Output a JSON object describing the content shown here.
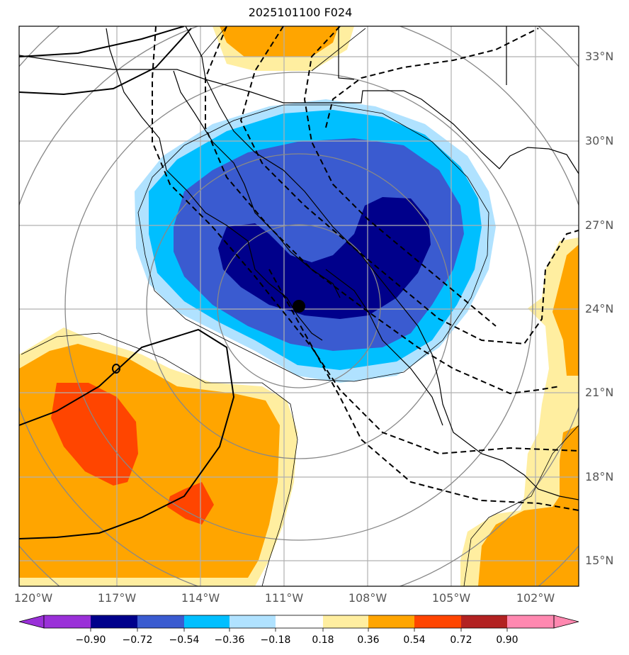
{
  "title": "2025101100 F024",
  "colors": {
    "bg": "#ffffff",
    "grid": "#b0b0b0",
    "ring": "#888888",
    "c_neg090": "#9a30d8",
    "c_neg072": "#00008b",
    "c_neg054": "#3a5bd0",
    "c_neg036": "#00bfff",
    "c_neg018": "#b0e2ff",
    "c_pos018": "#ffeea0",
    "c_pos036": "#ffa500",
    "c_pos054": "#ff4500",
    "c_pos072": "#b22222",
    "c_pos090": "#ff88b0"
  },
  "lat_labels": [
    "33°N",
    "30°N",
    "27°N",
    "24°N",
    "21°N",
    "18°N",
    "15°N"
  ],
  "lon_labels": [
    "120°W",
    "117°W",
    "114°W",
    "111°W",
    "108°W",
    "105°W",
    "102°W"
  ],
  "colorbar": {
    "ticks": [
      "−0.90",
      "−0.72",
      "−0.54",
      "−0.36",
      "−0.18",
      "0.18",
      "0.36",
      "0.54",
      "0.72",
      "0.90"
    ],
    "swatches": [
      "#9a30d8",
      "#00008b",
      "#3a5bd0",
      "#00bfff",
      "#b0e2ff",
      "#ffffff",
      "#ffeea0",
      "#ffa500",
      "#ff4500",
      "#b22222",
      "#ff88b0"
    ]
  },
  "center_marker": {
    "lat": 24.1,
    "lon": 110.5
  }
}
